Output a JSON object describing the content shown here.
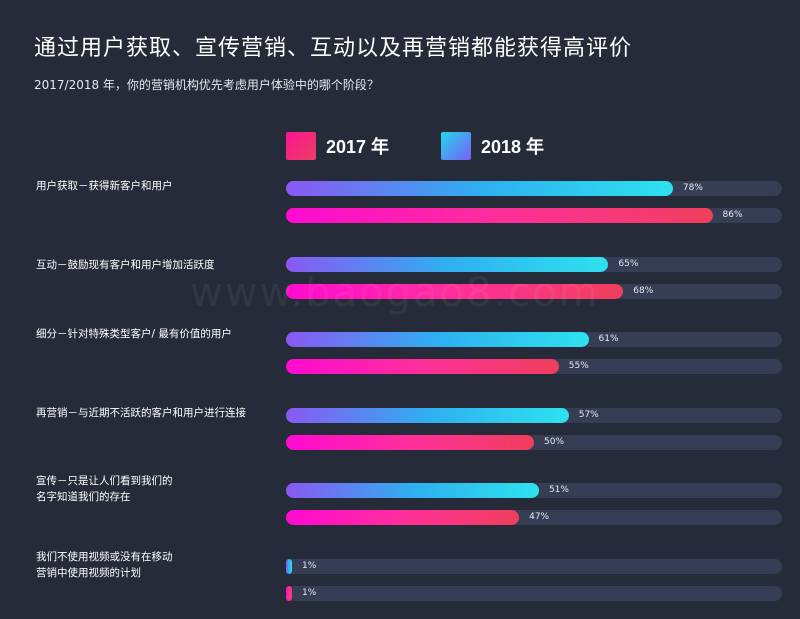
{
  "title": "通过用户获取、宣传营销、互动以及再营销都能获得高评价",
  "subtitle": "2017/2018 年，你的营销机构优先考虑用户体验中的哪个阶段？",
  "watermark": "www.baogao8.com",
  "colors": {
    "background": "#262b3a",
    "track": "#363d55",
    "series_2017": [
      "#ff0ad2",
      "#ef3f5c"
    ],
    "series_2018": [
      "#8a58f2",
      "#2ee2ee"
    ]
  },
  "chart_data": {
    "type": "bar",
    "orientation": "horizontal",
    "xlim": [
      0,
      100
    ],
    "unit": "%",
    "legend_position": "top",
    "categories": [
      "用户获取－获得新客户和用户",
      "互动－鼓励现有客户和用户增加活跃度",
      "细分－针对特殊类型客户/ 最有价值的用户",
      "再营销－与近期不活跃的客户和用户进行连接",
      "宣传－只是让人们看到我们的\n名字知道我们的存在",
      "我们不使用视频或没有在移动\n营销中使用视频的计划"
    ],
    "series": [
      {
        "name": "2018 年",
        "values": [
          78,
          65,
          61,
          57,
          51,
          1
        ]
      },
      {
        "name": "2017 年",
        "values": [
          86,
          68,
          55,
          50,
          47,
          1
        ]
      }
    ]
  }
}
